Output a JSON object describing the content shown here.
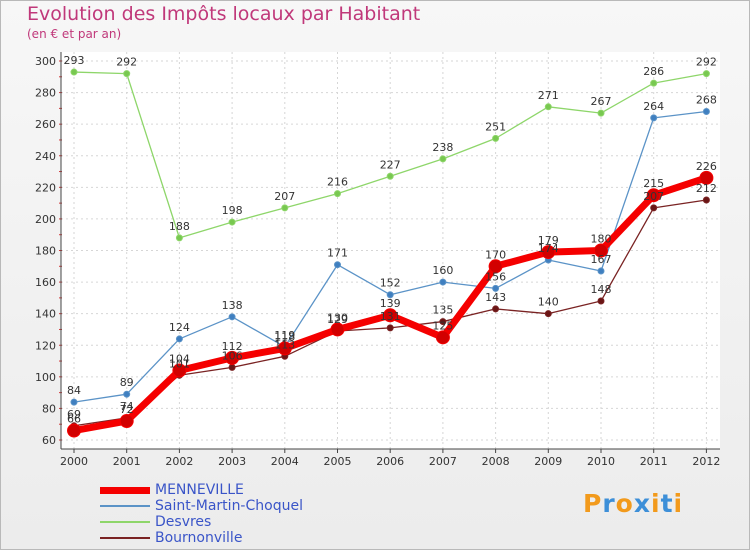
{
  "header": {
    "title": "Evolution des Impôts locaux par Habitant",
    "subtitle": "(en € et par an)"
  },
  "logo": {
    "text": "Proxiti"
  },
  "chart_data": {
    "type": "line",
    "title": "Evolution des Impôts locaux par Habitant",
    "subtitle": "(en € et par an)",
    "xlabel": "",
    "ylabel": "",
    "ylim": [
      60,
      300
    ],
    "yticks": [
      60,
      80,
      100,
      120,
      140,
      160,
      180,
      200,
      220,
      240,
      260,
      280,
      300
    ],
    "grid": true,
    "legend_position": "bottom-left",
    "categories": [
      "2000",
      "2001",
      "2002",
      "2003",
      "2004",
      "2005",
      "2006",
      "2007",
      "2008",
      "2009",
      "2010",
      "2011",
      "2012"
    ],
    "series": [
      {
        "name": "Bournonville",
        "color": "#7a2323",
        "marker": "#6a1515",
        "values": [
          69,
          74,
          101,
          106,
          113,
          129,
          131,
          135,
          143,
          140,
          148,
          207,
          212
        ]
      },
      {
        "name": "Saint-Martin-Choquel",
        "color": "#5b93c7",
        "marker": "#3f7fc0",
        "values": [
          84,
          89,
          124,
          138,
          119,
          171,
          152,
          160,
          156,
          174,
          167,
          264,
          268
        ]
      },
      {
        "name": "Desvres",
        "color": "#8ed66a",
        "marker": "#78c850",
        "values": [
          293,
          292,
          188,
          198,
          207,
          216,
          227,
          238,
          251,
          271,
          267,
          286,
          292
        ]
      },
      {
        "name": "MENNEVILLE",
        "color": "#f50000",
        "marker": "#d20000",
        "values": [
          66,
          72,
          104,
          112,
          118,
          130,
          139,
          125,
          170,
          179,
          180,
          215,
          226
        ]
      }
    ],
    "legend_order": [
      "MENNEVILLE",
      "Saint-Martin-Choquel",
      "Desvres",
      "Bournonville"
    ]
  }
}
